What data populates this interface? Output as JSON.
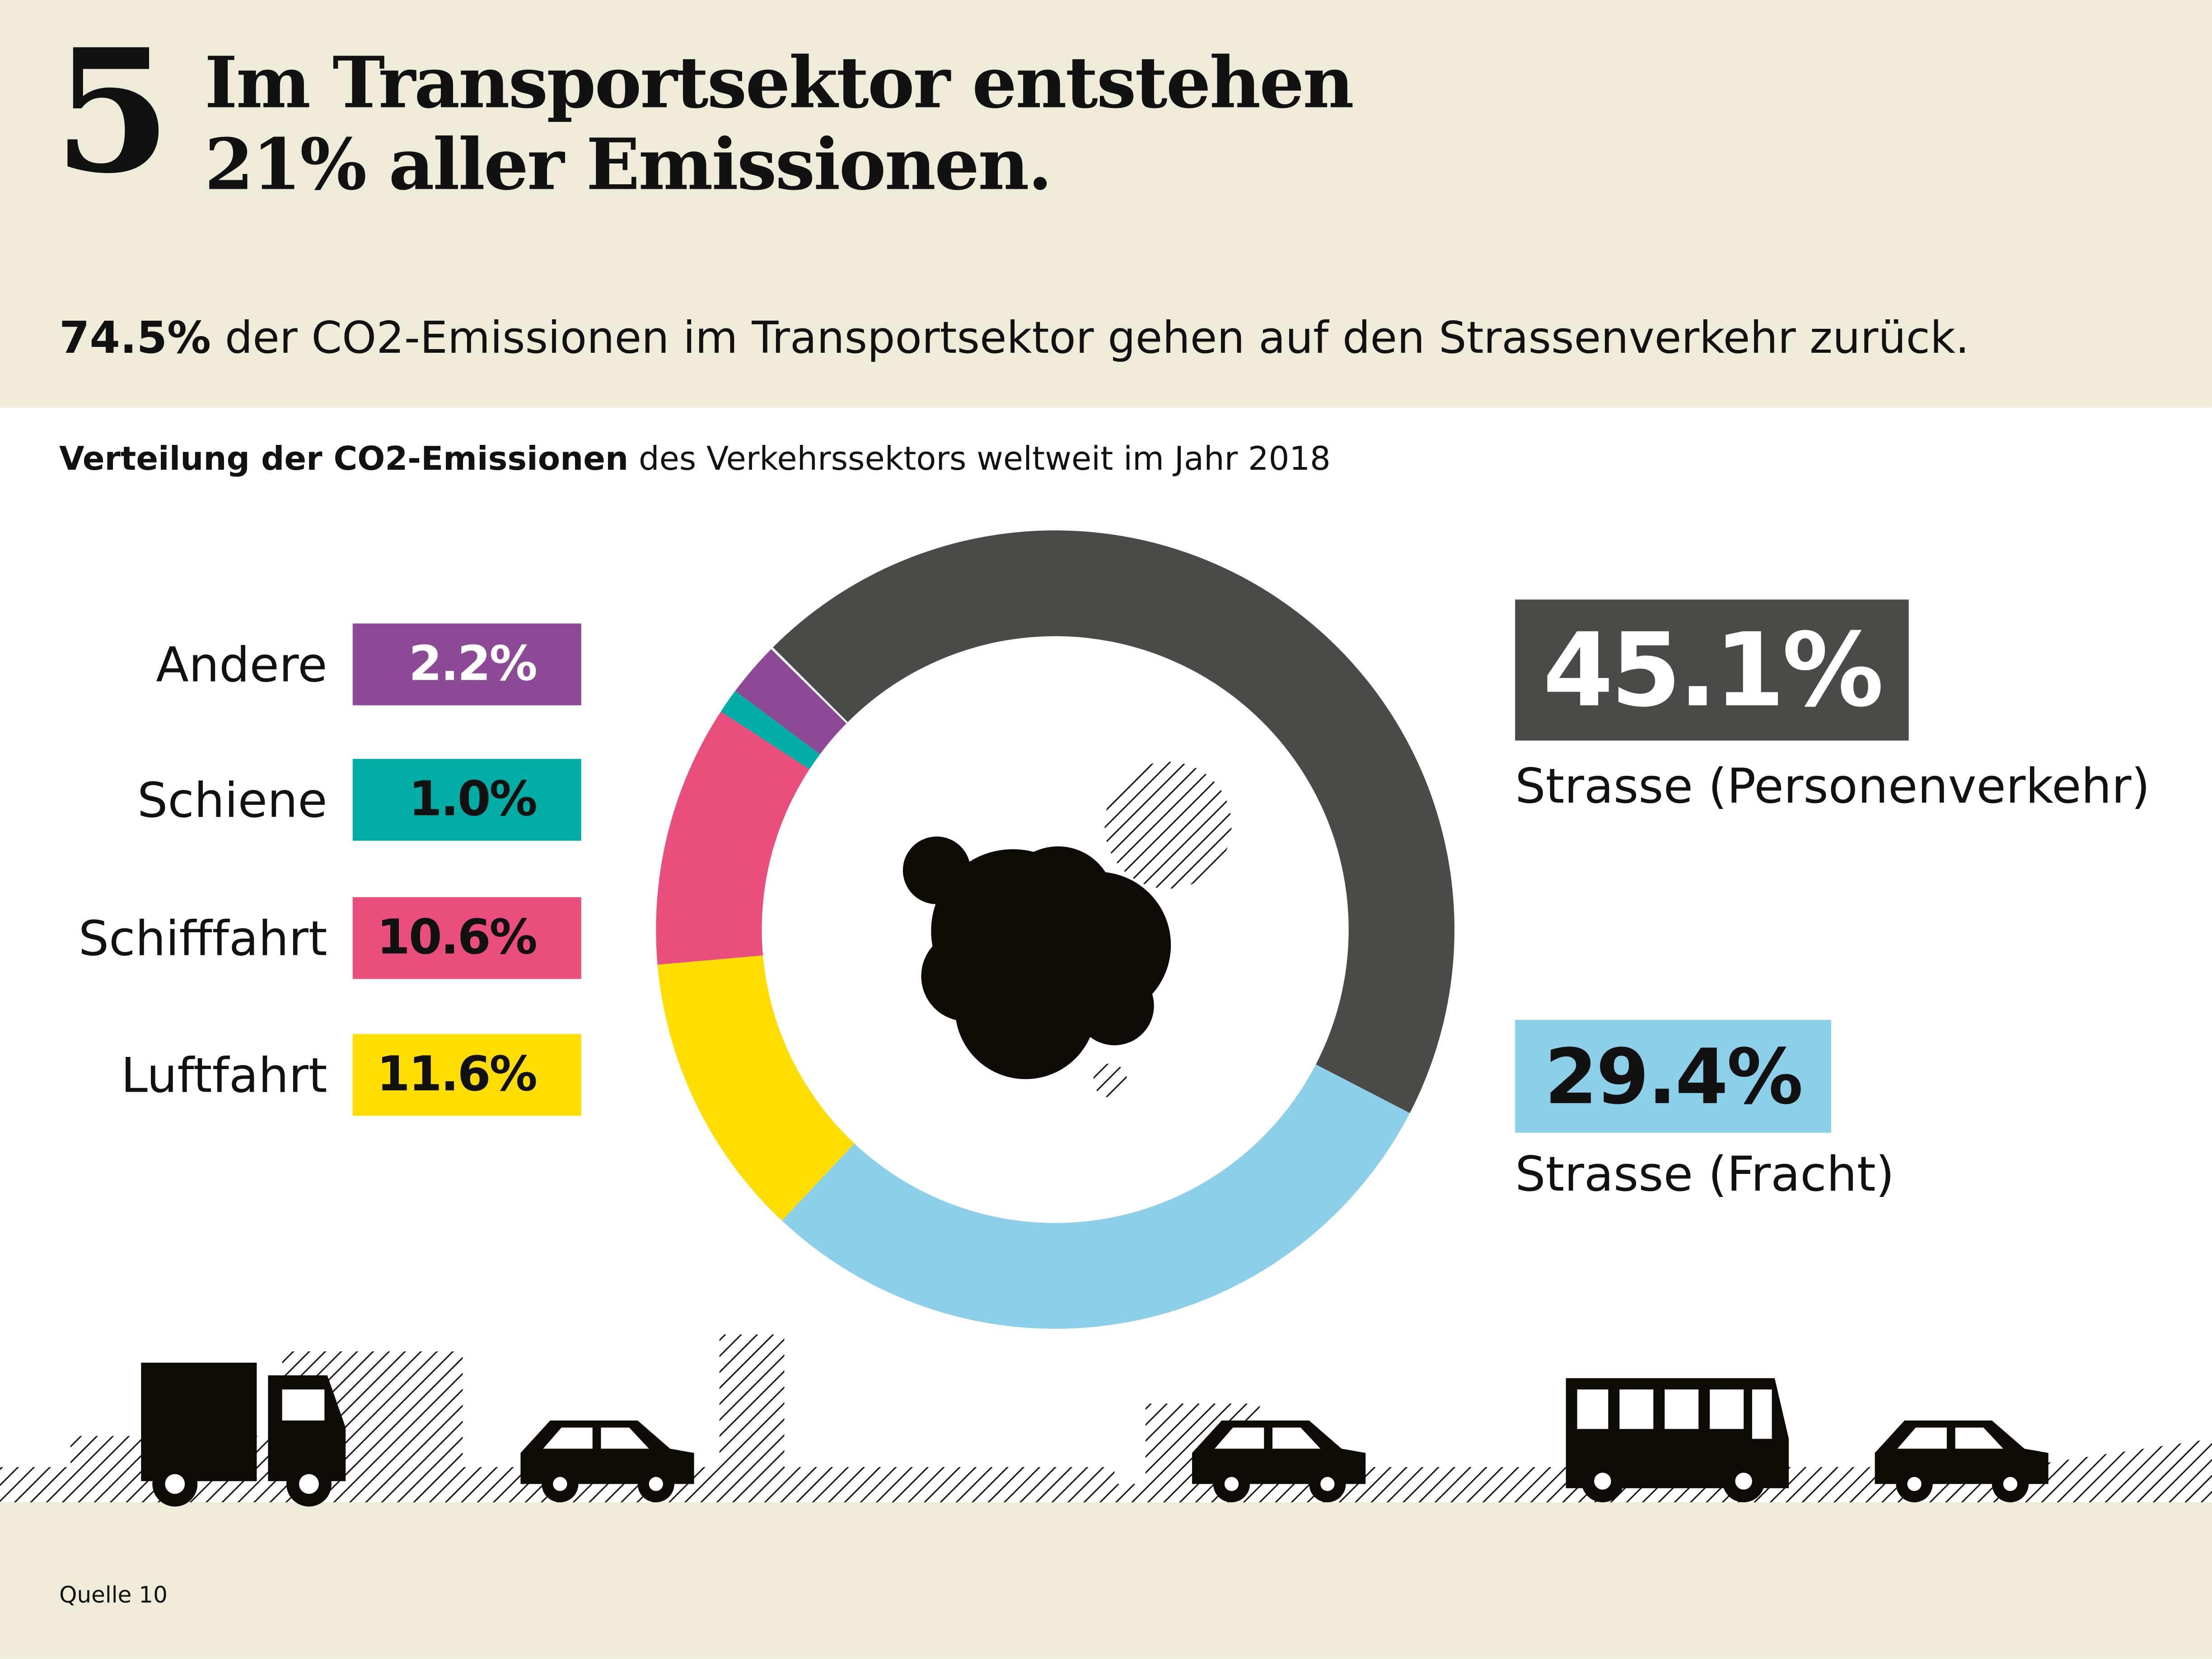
{
  "header": {
    "number": "5",
    "title_line1": "Im Transportsektor entstehen",
    "title_line2": "21% aller Emissionen."
  },
  "subtitle": {
    "bold": "74.5%",
    "rest": " der CO2-Emissionen im Transportsektor gehen auf den Strassenverkehr zurück."
  },
  "chart_title": {
    "bold": "Verteilung der CO2-Emissionen",
    "rest": " des Verkehrssektors weltweit im Jahr 2018"
  },
  "source": "Quelle 10",
  "chart_data": {
    "type": "pie",
    "donut": true,
    "slices": [
      {
        "label": "Strasse (Personenverkehr)",
        "value": 45.1,
        "display": "45.1%",
        "color": "#4a4a49"
      },
      {
        "label": "Strasse (Fracht)",
        "value": 29.4,
        "display": "29.4%",
        "color": "#8ccfe8"
      },
      {
        "label": "Luftfahrt",
        "value": 11.6,
        "display": "11.6%",
        "color": "#ffdd00"
      },
      {
        "label": "Schifffahrt",
        "value": 10.6,
        "display": "10.6%",
        "color": "#e94e7c"
      },
      {
        "label": "Schiene",
        "value": 1.0,
        "display": "1.0%",
        "color": "#00ada5"
      },
      {
        "label": "Andere",
        "value": 2.2,
        "display": "2.2%",
        "color": "#8c4a96"
      }
    ]
  }
}
